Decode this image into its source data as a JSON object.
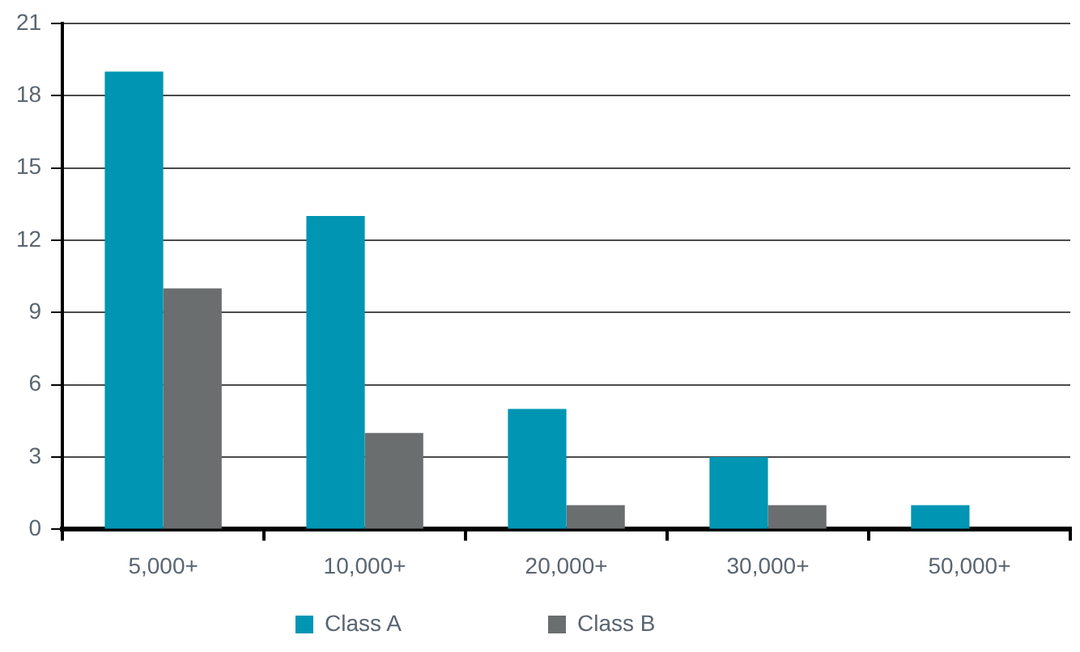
{
  "chart_data": {
    "type": "bar",
    "categories": [
      "5,000+",
      "10,000+",
      "20,000+",
      "30,000+",
      "50,000+"
    ],
    "series": [
      {
        "name": "Class A",
        "color": "#0095b3",
        "values": [
          19,
          13,
          5,
          3,
          1
        ]
      },
      {
        "name": "Class B",
        "color": "#6b6e6f",
        "values": [
          10,
          4,
          1,
          1,
          0
        ]
      }
    ],
    "ylim": [
      0,
      21
    ],
    "yticks": [
      0,
      3,
      6,
      9,
      12,
      15,
      18,
      21
    ],
    "grid": "y",
    "legend": "bottom"
  }
}
